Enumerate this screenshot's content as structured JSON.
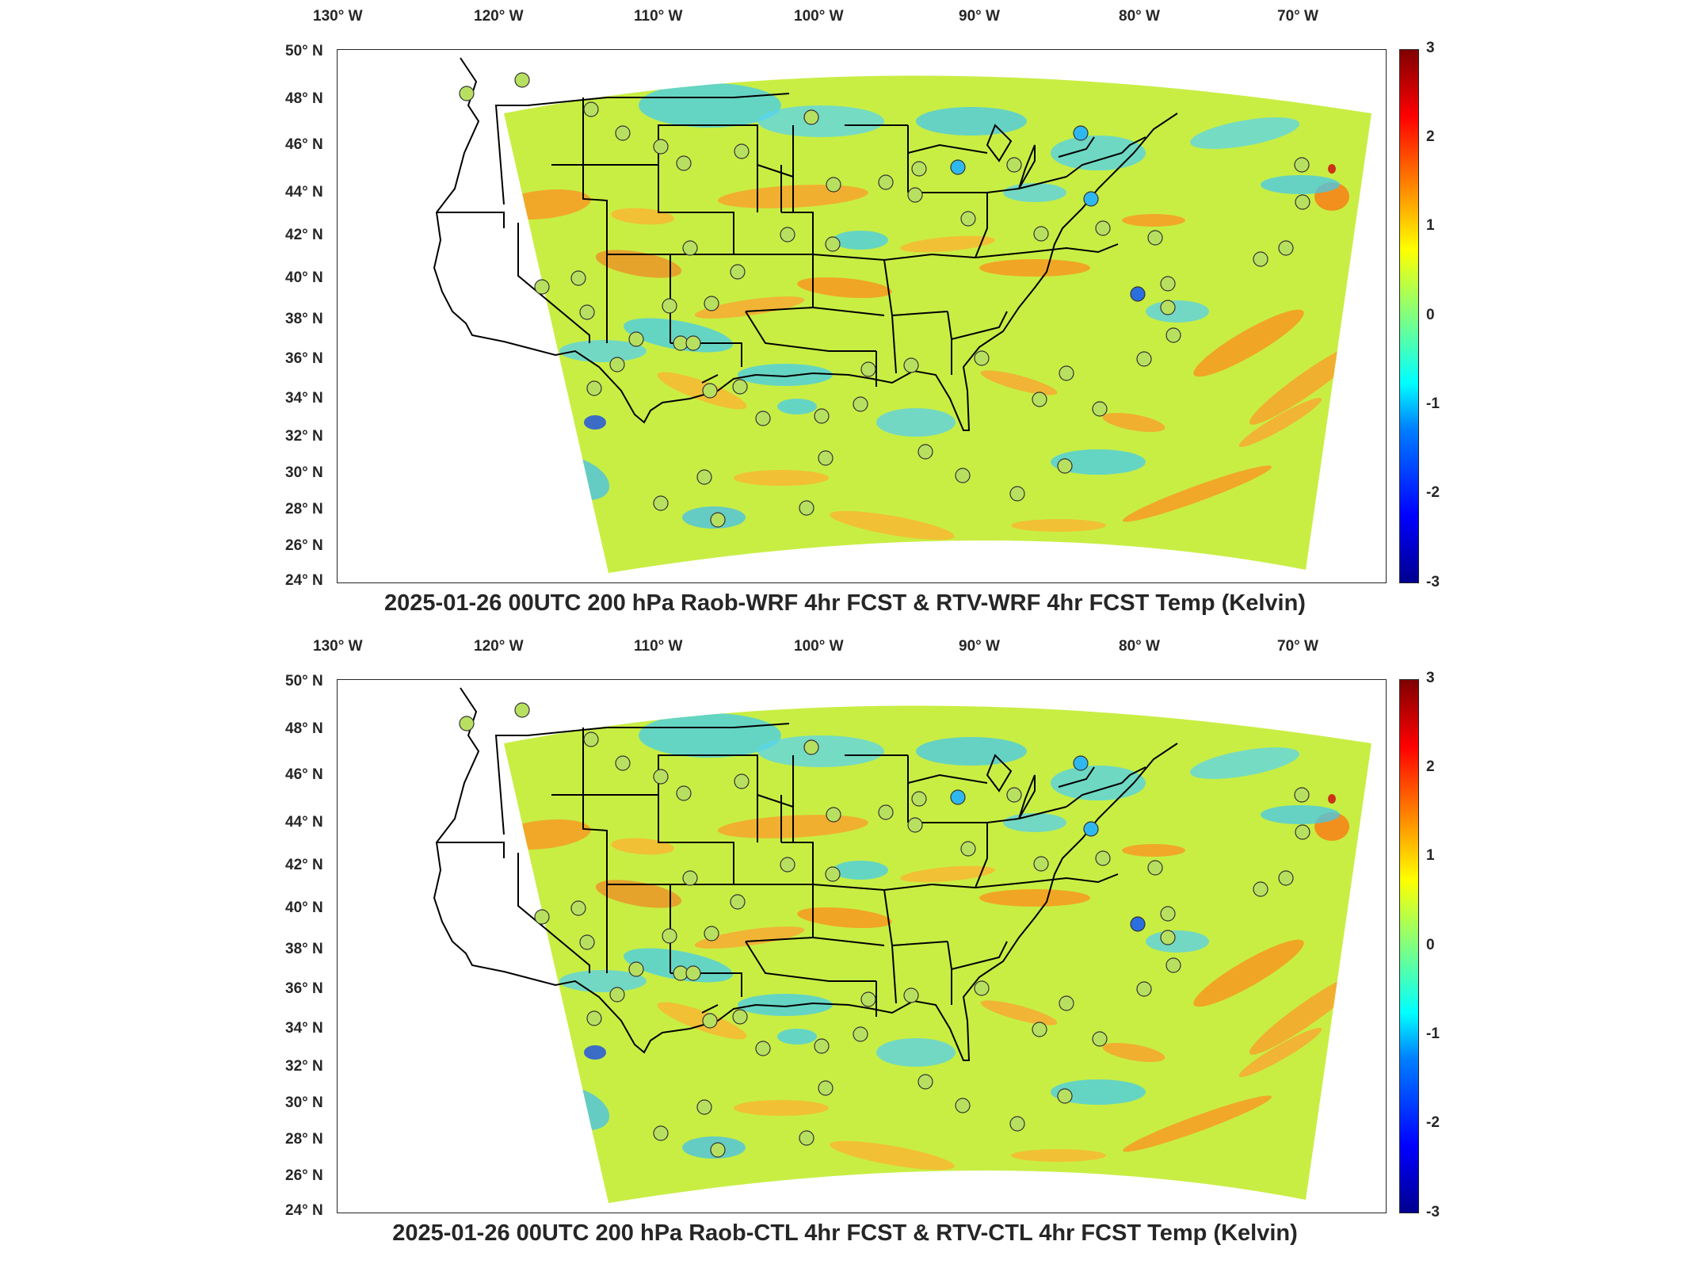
{
  "axes": {
    "lon_labels": [
      "130° W",
      "120° W",
      "110° W",
      "100° W",
      "90° W",
      "80° W",
      "70° W"
    ],
    "lat_labels": [
      "50° N",
      "48° N",
      "46° N",
      "44° N",
      "42° N",
      "40° N",
      "38° N",
      "36° N",
      "34° N",
      "32° N",
      "30° N",
      "28° N",
      "26° N",
      "24° N"
    ]
  },
  "colorbar": {
    "ticks": [
      "3",
      "2",
      "1",
      "0",
      "-1",
      "-2",
      "-3"
    ],
    "range": [
      -3,
      3
    ],
    "colormap": "jet"
  },
  "panels": [
    {
      "title": "2025-01-26 00UTC 200 hPa Raob-WRF 4hr FCST & RTV-WRF 4hr FCST Temp (Kelvin)"
    },
    {
      "title": "2025-01-26 00UTC 200 hPa Raob-CTL 4hr FCST & RTV-CTL 4hr FCST Temp (Kelvin)"
    }
  ],
  "colors": {
    "frame": "#262626",
    "field_base": "#c8ee44",
    "warm": "#ff8c1a",
    "cool": "#33ccee",
    "hot_spot": "#d01010",
    "station_fill": "#b8e060"
  }
}
